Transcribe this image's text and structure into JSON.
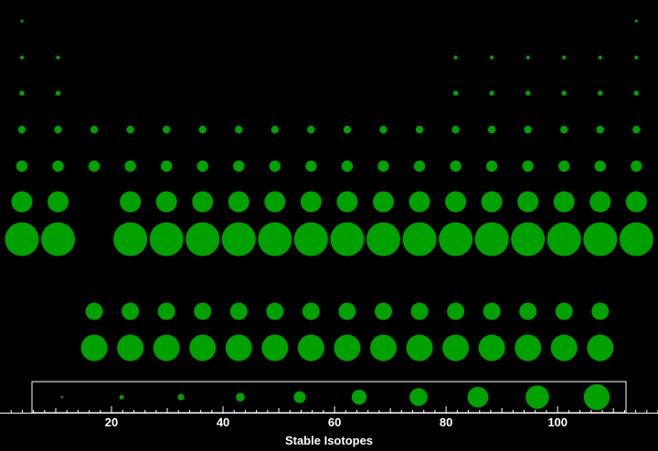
{
  "chart_data": {
    "type": "scatter",
    "encoding": "periodic-table bubble grid; bubble area grows with period (row) and is drawn for every element position",
    "marker_color": "#00a000",
    "background_color": "#000000",
    "legend_border_color": "#ffffff",
    "main_grid": {
      "columns": 18,
      "rows": [
        {
          "period": 1,
          "columns": [
            1,
            18
          ]
        },
        {
          "period": 2,
          "columns": [
            1,
            2,
            13,
            14,
            15,
            16,
            17,
            18
          ]
        },
        {
          "period": 3,
          "columns": [
            1,
            2,
            13,
            14,
            15,
            16,
            17,
            18
          ]
        },
        {
          "period": 4,
          "columns": [
            1,
            2,
            3,
            4,
            5,
            6,
            7,
            8,
            9,
            10,
            11,
            12,
            13,
            14,
            15,
            16,
            17,
            18
          ]
        },
        {
          "period": 5,
          "columns": [
            1,
            2,
            3,
            4,
            5,
            6,
            7,
            8,
            9,
            10,
            11,
            12,
            13,
            14,
            15,
            16,
            17,
            18
          ]
        },
        {
          "period": 6,
          "columns": [
            1,
            2,
            4,
            5,
            6,
            7,
            8,
            9,
            10,
            11,
            12,
            13,
            14,
            15,
            16,
            17,
            18
          ]
        },
        {
          "period": 7,
          "columns": [
            1,
            2,
            4,
            5,
            6,
            7,
            8,
            9,
            10,
            11,
            12,
            13,
            14,
            15,
            16,
            17,
            18
          ]
        }
      ]
    },
    "f_block_rows": [
      {
        "period": 6,
        "count": 15
      },
      {
        "period": 7,
        "count": 15
      }
    ],
    "legend": {
      "count": 10,
      "scale": "increasing marker size from left to right"
    },
    "x_axis": {
      "label": "Stable Isotopes",
      "range": [
        0,
        118
      ],
      "ticks": [
        20,
        40,
        60,
        80,
        100
      ]
    }
  }
}
